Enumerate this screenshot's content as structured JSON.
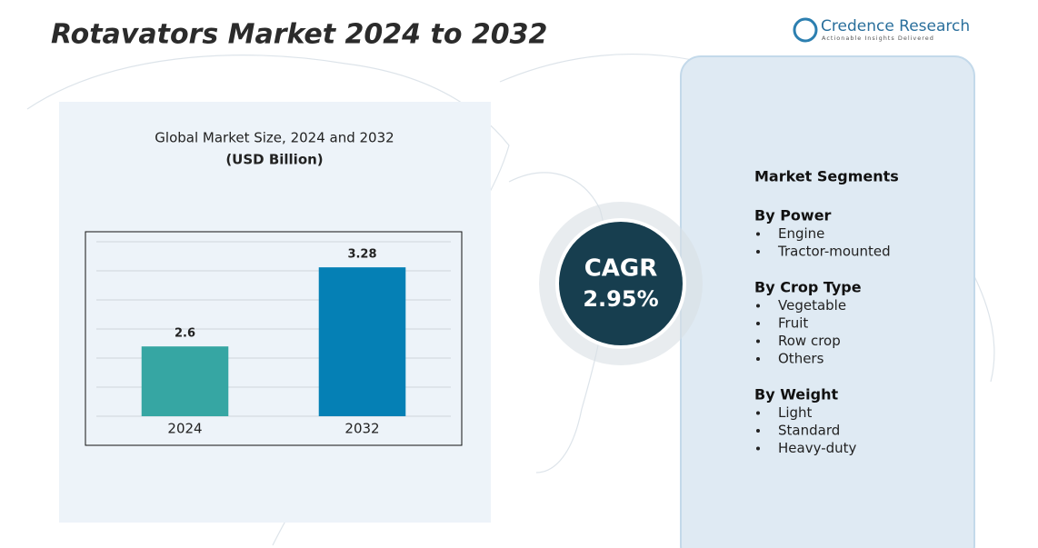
{
  "header": {
    "title": "Rotavators  Market 2024 to 2032",
    "logo_name": "Credence Research",
    "logo_tagline": "Actionable Insights Delivered"
  },
  "chart_data": {
    "type": "bar",
    "title": "Global Market Size, 2024 and 2032",
    "subtitle": "(USD Billion)",
    "categories": [
      "2024",
      "2032"
    ],
    "values": [
      2.6,
      3.28
    ],
    "colors": [
      "#36a6a3",
      "#0580b5"
    ],
    "ylim": [
      2,
      3.5
    ],
    "yticks": [
      2,
      2.25,
      2.5,
      2.75,
      3,
      3.25,
      3.5
    ],
    "grid": true
  },
  "cagr": {
    "label": "CAGR",
    "value": "2.95%"
  },
  "segments": {
    "title": "Market Segments",
    "groups": [
      {
        "title": "By Power",
        "items": [
          "Engine",
          "Tractor-mounted"
        ]
      },
      {
        "title": "By Crop Type",
        "items": [
          "Vegetable",
          "Fruit",
          "Row crop",
          "Others"
        ]
      },
      {
        "title": "By Weight",
        "items": [
          "Light",
          "Standard",
          "Heavy-duty"
        ]
      }
    ]
  }
}
